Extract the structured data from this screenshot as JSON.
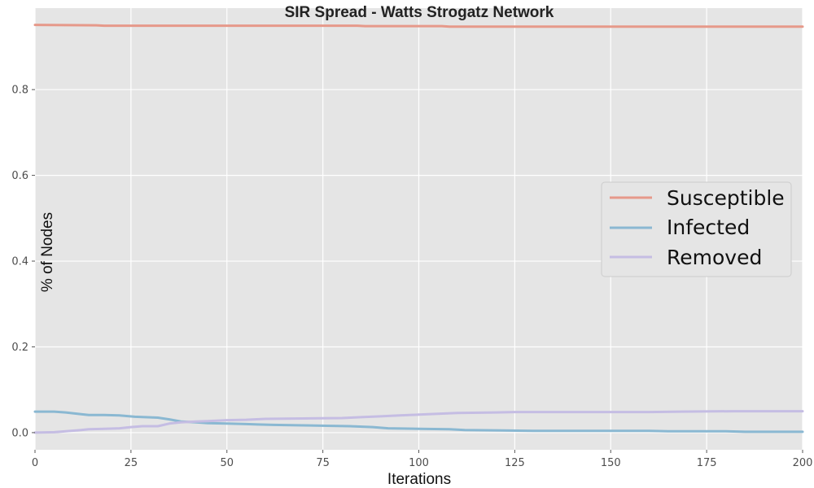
{
  "chart_data": {
    "type": "line",
    "title": "SIR Spread - Watts Strogatz Network",
    "xlabel": "Iterations",
    "ylabel": "% of Nodes",
    "xlim": [
      0,
      200
    ],
    "ylim": [
      -0.04,
      0.99
    ],
    "xticks": [
      {
        "value": 0,
        "label": "0"
      },
      {
        "value": 25,
        "label": "25"
      },
      {
        "value": 50,
        "label": "50"
      },
      {
        "value": 75,
        "label": "75"
      },
      {
        "value": 100,
        "label": "100"
      },
      {
        "value": 125,
        "label": "125"
      },
      {
        "value": 150,
        "label": "150"
      },
      {
        "value": 175,
        "label": "175"
      },
      {
        "value": 200,
        "label": "200"
      }
    ],
    "yticks": [
      {
        "value": 0.0,
        "label": "0.0"
      },
      {
        "value": 0.2,
        "label": "0.2"
      },
      {
        "value": 0.4,
        "label": "0.4"
      },
      {
        "value": 0.6,
        "label": "0.6"
      },
      {
        "value": 0.8,
        "label": "0.8"
      }
    ],
    "grid": true,
    "legend_position": "center-right",
    "background": "#e5e5e5",
    "series": [
      {
        "name": "Susceptible",
        "color": "#e6998a",
        "x": [
          0,
          16,
          18,
          40,
          60,
          84,
          86,
          106,
          108,
          130,
          150,
          170,
          200
        ],
        "y": [
          0.951,
          0.95,
          0.949,
          0.949,
          0.949,
          0.949,
          0.948,
          0.948,
          0.947,
          0.947,
          0.947,
          0.947,
          0.947
        ]
      },
      {
        "name": "Infected",
        "color": "#8ab8d2",
        "x": [
          0,
          5,
          8,
          12,
          14,
          18,
          22,
          26,
          32,
          35,
          38,
          42,
          45,
          50,
          55,
          58,
          62,
          70,
          76,
          82,
          88,
          92,
          100,
          108,
          112,
          122,
          130,
          160,
          165,
          170,
          180,
          185,
          200
        ],
        "y": [
          0.049,
          0.049,
          0.047,
          0.043,
          0.041,
          0.041,
          0.04,
          0.037,
          0.035,
          0.031,
          0.026,
          0.024,
          0.022,
          0.021,
          0.02,
          0.019,
          0.018,
          0.017,
          0.016,
          0.015,
          0.013,
          0.01,
          0.009,
          0.008,
          0.006,
          0.005,
          0.004,
          0.004,
          0.003,
          0.003,
          0.003,
          0.002,
          0.002
        ]
      },
      {
        "name": "Removed",
        "color": "#c5bde3",
        "x": [
          0,
          5,
          8,
          12,
          14,
          18,
          22,
          25,
          28,
          32,
          35,
          38,
          42,
          45,
          50,
          55,
          60,
          70,
          80,
          85,
          90,
          95,
          100,
          105,
          110,
          120,
          125,
          160,
          168,
          182,
          200
        ],
        "y": [
          0.0,
          0.001,
          0.003,
          0.006,
          0.008,
          0.009,
          0.01,
          0.013,
          0.015,
          0.015,
          0.021,
          0.024,
          0.026,
          0.027,
          0.029,
          0.03,
          0.032,
          0.033,
          0.034,
          0.036,
          0.038,
          0.04,
          0.042,
          0.044,
          0.046,
          0.047,
          0.048,
          0.048,
          0.049,
          0.05,
          0.05
        ]
      }
    ]
  }
}
